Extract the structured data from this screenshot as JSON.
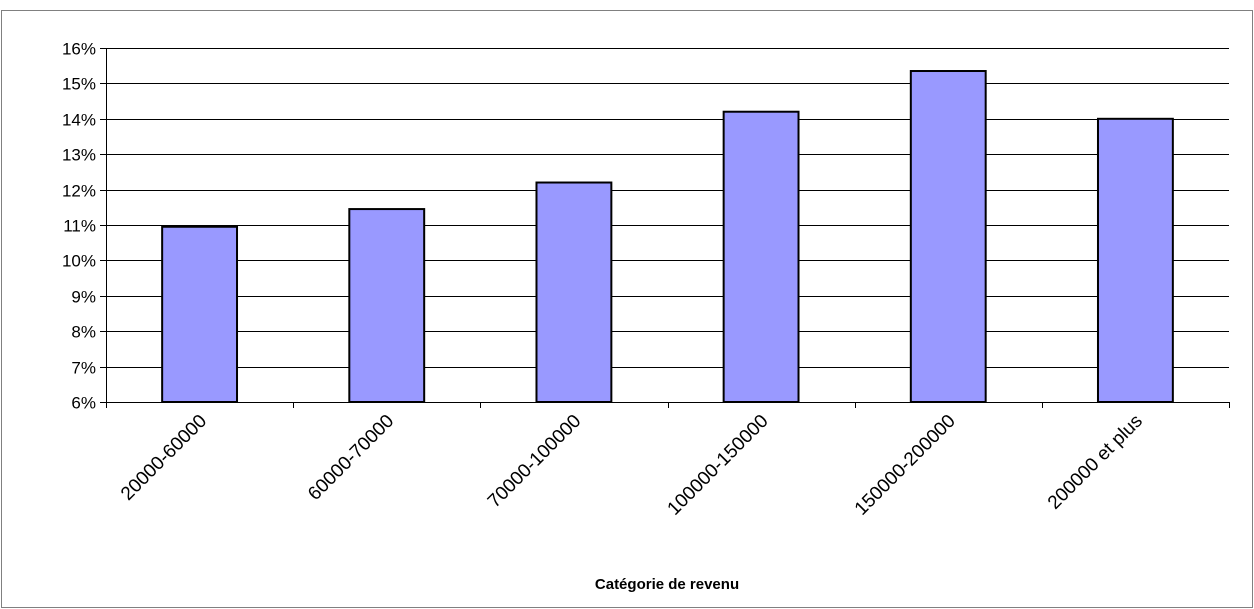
{
  "chart_data": {
    "type": "bar",
    "title": "",
    "xlabel": "Catégorie de revenu",
    "ylabel": "",
    "categories": [
      "20000-60000",
      "60000-70000",
      "70000-100000",
      "100000-150000",
      "150000-200000",
      "200000 et plus"
    ],
    "values": [
      10.95,
      11.45,
      12.2,
      14.2,
      15.35,
      14.0
    ],
    "ylim": [
      6,
      16
    ],
    "yticks": [
      6,
      7,
      8,
      9,
      10,
      11,
      12,
      13,
      14,
      15,
      16
    ],
    "ytick_labels": [
      "6%",
      "7%",
      "8%",
      "9%",
      "10%",
      "11%",
      "12%",
      "13%",
      "14%",
      "15%",
      "16%"
    ],
    "grid": true,
    "legend": "none",
    "bar_color": "#9999ff",
    "bar_edge_color": "#000000"
  }
}
